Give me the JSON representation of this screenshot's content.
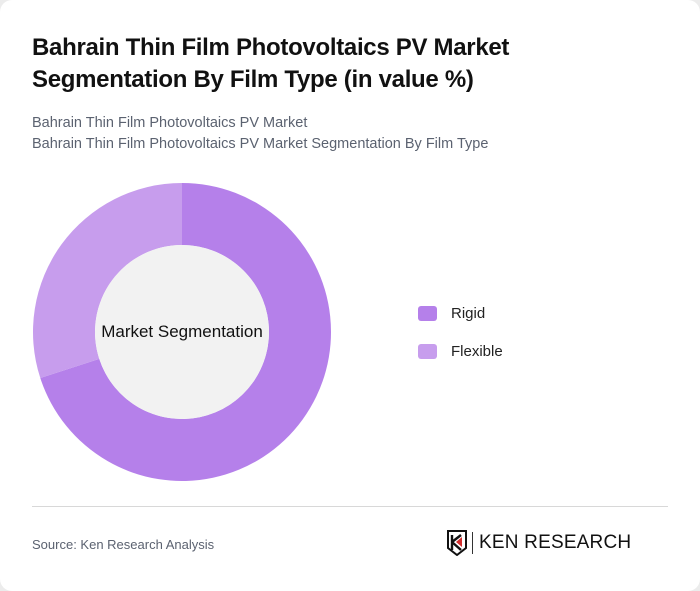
{
  "header": {
    "title": "Bahrain Thin Film Photovoltaics PV Market Segmentation By Film Type (in value %)",
    "subtitle_line1": "Bahrain Thin Film Photovoltaics PV Market",
    "subtitle_line2": "Bahrain Thin Film Photovoltaics PV Market Segmentation By Film Type"
  },
  "chart_data": {
    "type": "pie",
    "variant": "donut",
    "title": "Bahrain Thin Film Photovoltaics PV Market Segmentation By Film Type (in value %)",
    "center_label": "Market Segmentation",
    "categories": [
      "Rigid",
      "Flexible"
    ],
    "values": [
      70,
      30
    ],
    "colors": [
      "#b580ea",
      "#c79ded"
    ],
    "legend_position": "right",
    "start_angle_deg": 0,
    "direction": "clockwise"
  },
  "legend": {
    "items": [
      {
        "label": "Rigid",
        "color": "#b580ea"
      },
      {
        "label": "Flexible",
        "color": "#c79ded"
      }
    ]
  },
  "footer": {
    "source": "Source: Ken Research Analysis",
    "logo_text": "KEN RESEARCH",
    "logo_mark": "K"
  },
  "colors": {
    "hole": "#f2f2f2",
    "accent_red": "#d32f2f"
  }
}
